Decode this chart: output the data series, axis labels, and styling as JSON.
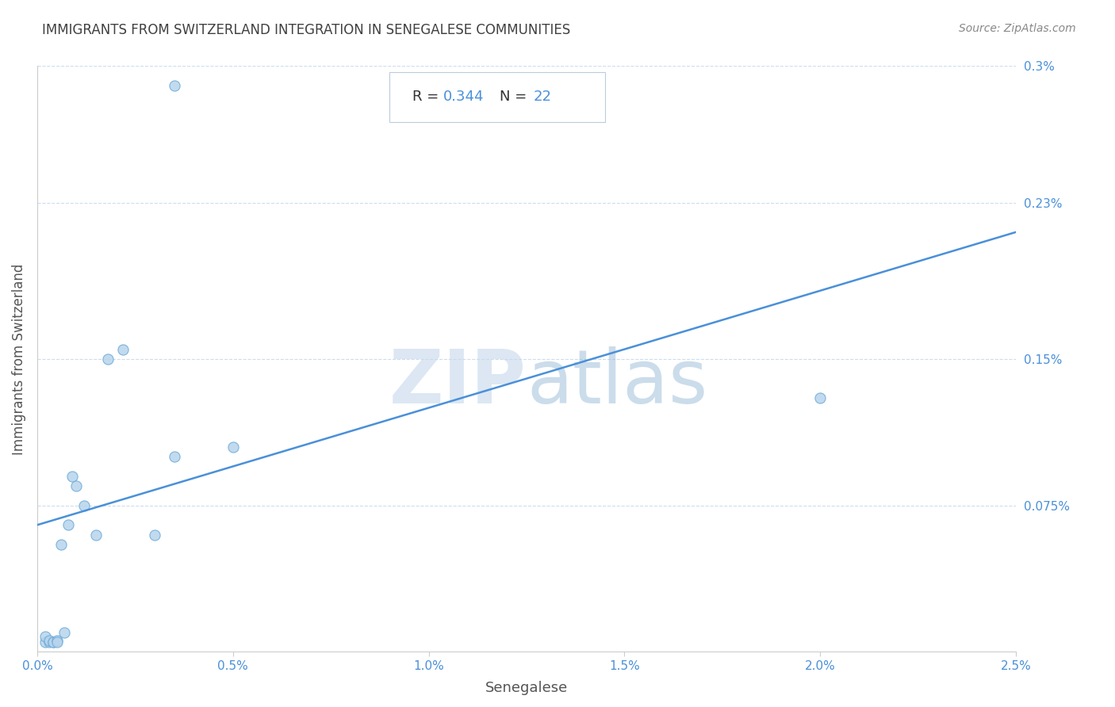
{
  "title": "IMMIGRANTS FROM SWITZERLAND INTEGRATION IN SENEGALESE COMMUNITIES",
  "source": "Source: ZipAtlas.com",
  "xlabel": "Senegalese",
  "ylabel": "Immigrants from Switzerland",
  "R": 0.344,
  "N": 22,
  "xlim": [
    0.0,
    0.025
  ],
  "ylim": [
    0.0,
    0.003
  ],
  "xtick_labels": [
    "0.0%",
    "0.5%",
    "1.0%",
    "1.5%",
    "2.0%",
    "2.5%"
  ],
  "xtick_vals": [
    0.0,
    0.005,
    0.01,
    0.015,
    0.02,
    0.025
  ],
  "ytick_labels": [
    "0.3%",
    "0.23%",
    "0.15%",
    "0.075%"
  ],
  "ytick_vals": [
    0.003,
    0.0023,
    0.0015,
    0.00075
  ],
  "scatter_x": [
    0.0002,
    0.0002,
    0.0003,
    0.0003,
    0.0004,
    0.0004,
    0.0005,
    0.0005,
    0.0006,
    0.0007,
    0.0008,
    0.0009,
    0.001,
    0.0012,
    0.0015,
    0.0018,
    0.0022,
    0.003,
    0.0035,
    0.005,
    0.02,
    0.0035
  ],
  "scatter_y": [
    5e-05,
    8e-05,
    5e-05,
    6e-05,
    5e-05,
    5e-05,
    6e-05,
    5e-05,
    0.00055,
    0.0001,
    0.00065,
    0.0009,
    0.00085,
    0.00075,
    0.0006,
    0.0015,
    0.00155,
    0.0006,
    0.001,
    0.00105,
    0.0013,
    0.0029
  ],
  "line_x_start": 0.0,
  "line_x_end": 0.025,
  "line_y_start": 0.00065,
  "line_y_end": 0.00215,
  "line_color": "#4A90D9",
  "scatter_facecolor": "#B8D4EC",
  "scatter_edgecolor": "#6AAAD8",
  "scatter_size": 90,
  "grid_color": "#CCDDEE",
  "title_color": "#404040",
  "source_color": "#888888",
  "axis_label_color": "#555555",
  "tick_label_color": "#4A90D9",
  "watermark_zip_color": "#C5D8EC",
  "watermark_atlas_color": "#99BBD9"
}
